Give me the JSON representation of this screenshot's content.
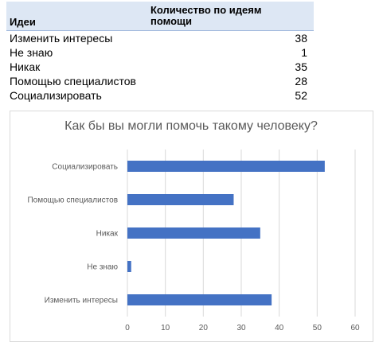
{
  "table": {
    "header_left": "Идеи",
    "header_right": "Количество по идеям помощи",
    "rows": [
      {
        "label": "Изменить интересы",
        "value": "38"
      },
      {
        "label": "Не знаю",
        "value": "1"
      },
      {
        "label": "Никак",
        "value": "35"
      },
      {
        "label": "Помощью специалистов",
        "value": "28"
      },
      {
        "label": "Социализировать",
        "value": "52"
      }
    ]
  },
  "chart_data": {
    "type": "bar",
    "orientation": "horizontal",
    "title": "Как бы вы могли помочь такому человеку?",
    "categories": [
      "Изменить интересы",
      "Не знаю",
      "Никак",
      "Помощью специалистов",
      "Социализировать"
    ],
    "values": [
      38,
      1,
      35,
      28,
      52
    ],
    "xlim": [
      0,
      60
    ],
    "xticks": [
      0,
      10,
      20,
      30,
      40,
      50,
      60
    ],
    "xlabel": "",
    "ylabel": "",
    "grid": true,
    "legend": false,
    "bar_color": "#4472c4",
    "grid_color": "#d9d9d9"
  }
}
